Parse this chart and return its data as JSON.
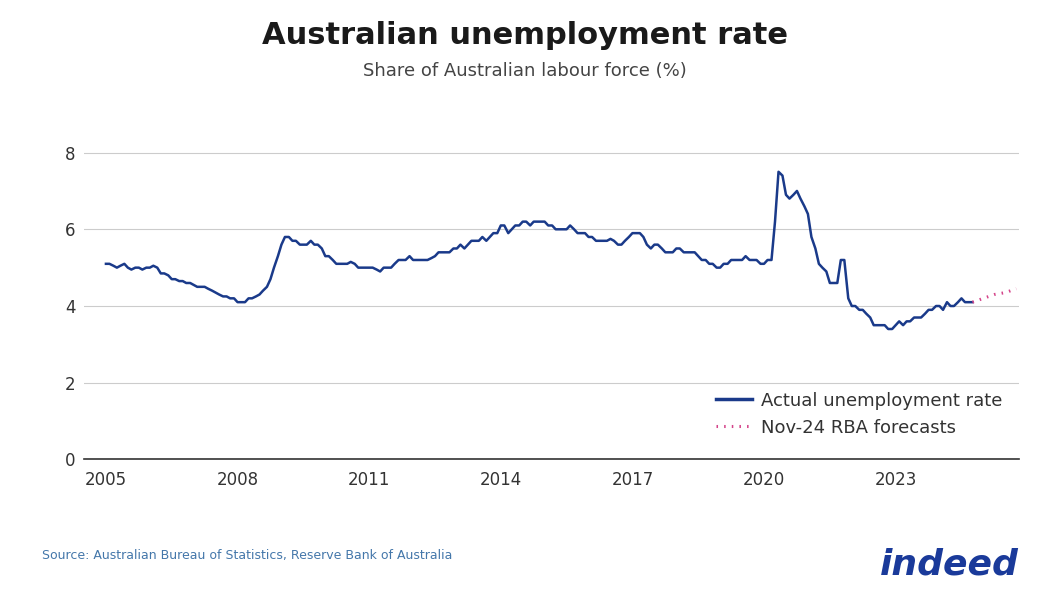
{
  "title": "Australian unemployment rate",
  "subtitle": "Share of Australian labour force (%)",
  "source": "Source: Australian Bureau of Statistics, Reserve Bank of Australia",
  "title_fontsize": 22,
  "subtitle_fontsize": 13,
  "ylim": [
    0,
    8.6
  ],
  "yticks": [
    0,
    2,
    4,
    6,
    8
  ],
  "xlim_start": 2004.5,
  "xlim_end": 2025.8,
  "xtick_years": [
    2005,
    2008,
    2011,
    2014,
    2017,
    2020,
    2023
  ],
  "line_color": "#1a3a8a",
  "forecast_color": "#d4448a",
  "background_color": "#ffffff",
  "legend_label_actual": "Actual unemployment rate",
  "legend_label_forecast": "Nov-24 RBA forecasts",
  "actual_data": [
    [
      2005.0,
      5.1
    ],
    [
      2005.08,
      5.1
    ],
    [
      2005.17,
      5.05
    ],
    [
      2005.25,
      5.0
    ],
    [
      2005.33,
      5.05
    ],
    [
      2005.42,
      5.1
    ],
    [
      2005.5,
      5.0
    ],
    [
      2005.58,
      4.95
    ],
    [
      2005.67,
      5.0
    ],
    [
      2005.75,
      5.0
    ],
    [
      2005.83,
      4.95
    ],
    [
      2005.92,
      5.0
    ],
    [
      2006.0,
      5.0
    ],
    [
      2006.08,
      5.05
    ],
    [
      2006.17,
      5.0
    ],
    [
      2006.25,
      4.85
    ],
    [
      2006.33,
      4.85
    ],
    [
      2006.42,
      4.8
    ],
    [
      2006.5,
      4.7
    ],
    [
      2006.58,
      4.7
    ],
    [
      2006.67,
      4.65
    ],
    [
      2006.75,
      4.65
    ],
    [
      2006.83,
      4.6
    ],
    [
      2006.92,
      4.6
    ],
    [
      2007.0,
      4.55
    ],
    [
      2007.08,
      4.5
    ],
    [
      2007.17,
      4.5
    ],
    [
      2007.25,
      4.5
    ],
    [
      2007.33,
      4.45
    ],
    [
      2007.42,
      4.4
    ],
    [
      2007.5,
      4.35
    ],
    [
      2007.58,
      4.3
    ],
    [
      2007.67,
      4.25
    ],
    [
      2007.75,
      4.25
    ],
    [
      2007.83,
      4.2
    ],
    [
      2007.92,
      4.2
    ],
    [
      2008.0,
      4.1
    ],
    [
      2008.08,
      4.1
    ],
    [
      2008.17,
      4.1
    ],
    [
      2008.25,
      4.2
    ],
    [
      2008.33,
      4.2
    ],
    [
      2008.42,
      4.25
    ],
    [
      2008.5,
      4.3
    ],
    [
      2008.58,
      4.4
    ],
    [
      2008.67,
      4.5
    ],
    [
      2008.75,
      4.7
    ],
    [
      2008.83,
      5.0
    ],
    [
      2008.92,
      5.3
    ],
    [
      2009.0,
      5.6
    ],
    [
      2009.08,
      5.8
    ],
    [
      2009.17,
      5.8
    ],
    [
      2009.25,
      5.7
    ],
    [
      2009.33,
      5.7
    ],
    [
      2009.42,
      5.6
    ],
    [
      2009.5,
      5.6
    ],
    [
      2009.58,
      5.6
    ],
    [
      2009.67,
      5.7
    ],
    [
      2009.75,
      5.6
    ],
    [
      2009.83,
      5.6
    ],
    [
      2009.92,
      5.5
    ],
    [
      2010.0,
      5.3
    ],
    [
      2010.08,
      5.3
    ],
    [
      2010.17,
      5.2
    ],
    [
      2010.25,
      5.1
    ],
    [
      2010.33,
      5.1
    ],
    [
      2010.42,
      5.1
    ],
    [
      2010.5,
      5.1
    ],
    [
      2010.58,
      5.15
    ],
    [
      2010.67,
      5.1
    ],
    [
      2010.75,
      5.0
    ],
    [
      2010.83,
      5.0
    ],
    [
      2010.92,
      5.0
    ],
    [
      2011.0,
      5.0
    ],
    [
      2011.08,
      5.0
    ],
    [
      2011.17,
      4.95
    ],
    [
      2011.25,
      4.9
    ],
    [
      2011.33,
      5.0
    ],
    [
      2011.42,
      5.0
    ],
    [
      2011.5,
      5.0
    ],
    [
      2011.58,
      5.1
    ],
    [
      2011.67,
      5.2
    ],
    [
      2011.75,
      5.2
    ],
    [
      2011.83,
      5.2
    ],
    [
      2011.92,
      5.3
    ],
    [
      2012.0,
      5.2
    ],
    [
      2012.08,
      5.2
    ],
    [
      2012.17,
      5.2
    ],
    [
      2012.25,
      5.2
    ],
    [
      2012.33,
      5.2
    ],
    [
      2012.42,
      5.25
    ],
    [
      2012.5,
      5.3
    ],
    [
      2012.58,
      5.4
    ],
    [
      2012.67,
      5.4
    ],
    [
      2012.75,
      5.4
    ],
    [
      2012.83,
      5.4
    ],
    [
      2012.92,
      5.5
    ],
    [
      2013.0,
      5.5
    ],
    [
      2013.08,
      5.6
    ],
    [
      2013.17,
      5.5
    ],
    [
      2013.25,
      5.6
    ],
    [
      2013.33,
      5.7
    ],
    [
      2013.42,
      5.7
    ],
    [
      2013.5,
      5.7
    ],
    [
      2013.58,
      5.8
    ],
    [
      2013.67,
      5.7
    ],
    [
      2013.75,
      5.8
    ],
    [
      2013.83,
      5.9
    ],
    [
      2013.92,
      5.9
    ],
    [
      2014.0,
      6.1
    ],
    [
      2014.08,
      6.1
    ],
    [
      2014.17,
      5.9
    ],
    [
      2014.25,
      6.0
    ],
    [
      2014.33,
      6.1
    ],
    [
      2014.42,
      6.1
    ],
    [
      2014.5,
      6.2
    ],
    [
      2014.58,
      6.2
    ],
    [
      2014.67,
      6.1
    ],
    [
      2014.75,
      6.2
    ],
    [
      2014.83,
      6.2
    ],
    [
      2014.92,
      6.2
    ],
    [
      2015.0,
      6.2
    ],
    [
      2015.08,
      6.1
    ],
    [
      2015.17,
      6.1
    ],
    [
      2015.25,
      6.0
    ],
    [
      2015.33,
      6.0
    ],
    [
      2015.42,
      6.0
    ],
    [
      2015.5,
      6.0
    ],
    [
      2015.58,
      6.1
    ],
    [
      2015.67,
      6.0
    ],
    [
      2015.75,
      5.9
    ],
    [
      2015.83,
      5.9
    ],
    [
      2015.92,
      5.9
    ],
    [
      2016.0,
      5.8
    ],
    [
      2016.08,
      5.8
    ],
    [
      2016.17,
      5.7
    ],
    [
      2016.25,
      5.7
    ],
    [
      2016.33,
      5.7
    ],
    [
      2016.42,
      5.7
    ],
    [
      2016.5,
      5.75
    ],
    [
      2016.58,
      5.7
    ],
    [
      2016.67,
      5.6
    ],
    [
      2016.75,
      5.6
    ],
    [
      2016.83,
      5.7
    ],
    [
      2016.92,
      5.8
    ],
    [
      2017.0,
      5.9
    ],
    [
      2017.08,
      5.9
    ],
    [
      2017.17,
      5.9
    ],
    [
      2017.25,
      5.8
    ],
    [
      2017.33,
      5.6
    ],
    [
      2017.42,
      5.5
    ],
    [
      2017.5,
      5.6
    ],
    [
      2017.58,
      5.6
    ],
    [
      2017.67,
      5.5
    ],
    [
      2017.75,
      5.4
    ],
    [
      2017.83,
      5.4
    ],
    [
      2017.92,
      5.4
    ],
    [
      2018.0,
      5.5
    ],
    [
      2018.08,
      5.5
    ],
    [
      2018.17,
      5.4
    ],
    [
      2018.25,
      5.4
    ],
    [
      2018.33,
      5.4
    ],
    [
      2018.42,
      5.4
    ],
    [
      2018.5,
      5.3
    ],
    [
      2018.58,
      5.2
    ],
    [
      2018.67,
      5.2
    ],
    [
      2018.75,
      5.1
    ],
    [
      2018.83,
      5.1
    ],
    [
      2018.92,
      5.0
    ],
    [
      2019.0,
      5.0
    ],
    [
      2019.08,
      5.1
    ],
    [
      2019.17,
      5.1
    ],
    [
      2019.25,
      5.2
    ],
    [
      2019.33,
      5.2
    ],
    [
      2019.42,
      5.2
    ],
    [
      2019.5,
      5.2
    ],
    [
      2019.58,
      5.3
    ],
    [
      2019.67,
      5.2
    ],
    [
      2019.75,
      5.2
    ],
    [
      2019.83,
      5.2
    ],
    [
      2019.92,
      5.1
    ],
    [
      2020.0,
      5.1
    ],
    [
      2020.08,
      5.2
    ],
    [
      2020.17,
      5.2
    ],
    [
      2020.25,
      6.2
    ],
    [
      2020.33,
      7.5
    ],
    [
      2020.42,
      7.4
    ],
    [
      2020.5,
      6.9
    ],
    [
      2020.58,
      6.8
    ],
    [
      2020.67,
      6.9
    ],
    [
      2020.75,
      7.0
    ],
    [
      2020.83,
      6.8
    ],
    [
      2020.92,
      6.6
    ],
    [
      2021.0,
      6.4
    ],
    [
      2021.08,
      5.8
    ],
    [
      2021.17,
      5.5
    ],
    [
      2021.25,
      5.1
    ],
    [
      2021.33,
      5.0
    ],
    [
      2021.42,
      4.9
    ],
    [
      2021.5,
      4.6
    ],
    [
      2021.58,
      4.6
    ],
    [
      2021.67,
      4.6
    ],
    [
      2021.75,
      5.2
    ],
    [
      2021.83,
      5.2
    ],
    [
      2021.92,
      4.2
    ],
    [
      2022.0,
      4.0
    ],
    [
      2022.08,
      4.0
    ],
    [
      2022.17,
      3.9
    ],
    [
      2022.25,
      3.9
    ],
    [
      2022.33,
      3.8
    ],
    [
      2022.42,
      3.7
    ],
    [
      2022.5,
      3.5
    ],
    [
      2022.58,
      3.5
    ],
    [
      2022.67,
      3.5
    ],
    [
      2022.75,
      3.5
    ],
    [
      2022.83,
      3.4
    ],
    [
      2022.92,
      3.4
    ],
    [
      2023.0,
      3.5
    ],
    [
      2023.08,
      3.6
    ],
    [
      2023.17,
      3.5
    ],
    [
      2023.25,
      3.6
    ],
    [
      2023.33,
      3.6
    ],
    [
      2023.42,
      3.7
    ],
    [
      2023.5,
      3.7
    ],
    [
      2023.58,
      3.7
    ],
    [
      2023.67,
      3.8
    ],
    [
      2023.75,
      3.9
    ],
    [
      2023.83,
      3.9
    ],
    [
      2023.92,
      4.0
    ],
    [
      2024.0,
      4.0
    ],
    [
      2024.08,
      3.9
    ],
    [
      2024.17,
      4.1
    ],
    [
      2024.25,
      4.0
    ],
    [
      2024.33,
      4.0
    ],
    [
      2024.42,
      4.1
    ],
    [
      2024.5,
      4.2
    ],
    [
      2024.58,
      4.1
    ],
    [
      2024.67,
      4.1
    ],
    [
      2024.75,
      4.1
    ]
  ],
  "forecast_data": [
    [
      2024.75,
      4.1
    ],
    [
      2025.0,
      4.2
    ],
    [
      2025.25,
      4.3
    ],
    [
      2025.5,
      4.35
    ],
    [
      2025.75,
      4.45
    ]
  ]
}
